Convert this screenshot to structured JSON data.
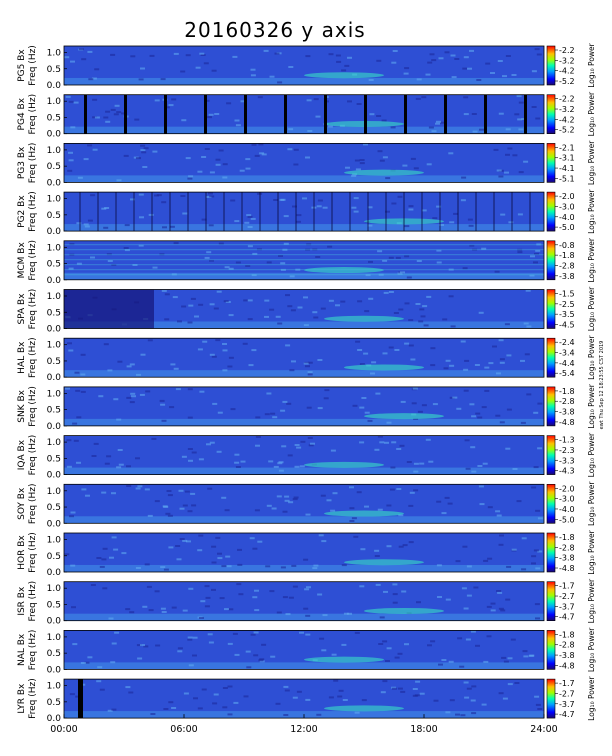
{
  "title": "20160326 y axis",
  "side_note": "ewt Thu Sep 12 18:23:55 CST 2019",
  "chart_data": {
    "type": "heatmap",
    "title": "20160326 y axis",
    "xlabel": "",
    "x_range": [
      0,
      24
    ],
    "x_ticks": [
      "00:00",
      "06:00",
      "12:00",
      "18:00",
      "24:00"
    ],
    "y_ticks": [
      "0.0",
      "0.5",
      "1.0"
    ],
    "ylim": [
      0,
      1.2
    ],
    "colorbar_label": "Log₁₀ Power",
    "panels": [
      {
        "station": "PG5",
        "ylabel_line1": "PG5 Bx",
        "ylabel_line2": "Freq (Hz)",
        "cbar_label": "Log₁₀ Power",
        "cbar_ticks": [
          "-2.2",
          "-3.2",
          "-4.2",
          "-5.2"
        ]
      },
      {
        "station": "PG4",
        "ylabel_line1": "PG4 Bx",
        "ylabel_line2": "Freq (Hz)",
        "cbar_label": "Log₁₀ Power",
        "cbar_ticks": [
          "-2.2",
          "-3.2",
          "-4.2",
          "-5.2"
        ]
      },
      {
        "station": "PG3",
        "ylabel_line1": "PG3 Bx",
        "ylabel_line2": "Freq (Hz)",
        "cbar_label": "Log₁₀ Power",
        "cbar_ticks": [
          "-2.1",
          "-3.1",
          "-4.1",
          "-5.1"
        ]
      },
      {
        "station": "PG2",
        "ylabel_line1": "PG2 Bx",
        "ylabel_line2": "Freq (Hz)",
        "cbar_label": "Log₁₀ Power",
        "cbar_ticks": [
          "-2.0",
          "-3.0",
          "-4.0",
          "-5.0"
        ]
      },
      {
        "station": "MCM",
        "ylabel_line1": "MCM Bx",
        "ylabel_line2": "Freq (Hz)",
        "cbar_label": "Log₁₀ Power",
        "cbar_ticks": [
          "-0.8",
          "-1.8",
          "-2.8",
          "-3.8"
        ]
      },
      {
        "station": "SPA",
        "ylabel_line1": "SPA Bx",
        "ylabel_line2": "Freq (Hz)",
        "cbar_label": "Log₁₀ Power",
        "cbar_ticks": [
          "-1.5",
          "-2.5",
          "-3.5",
          "-4.5"
        ]
      },
      {
        "station": "HAL",
        "ylabel_line1": "HAL Bx",
        "ylabel_line2": "Freq (Hz)",
        "cbar_label": "Log₁₀ Power",
        "cbar_ticks": [
          "-2.4",
          "-3.4",
          "-4.4",
          "-5.4"
        ]
      },
      {
        "station": "SNK",
        "ylabel_line1": "SNK Bx",
        "ylabel_line2": "Freq (Hz)",
        "cbar_label": "Log₁₀ Power",
        "cbar_ticks": [
          "-1.8",
          "-2.8",
          "-3.8",
          "-4.8"
        ]
      },
      {
        "station": "IQA",
        "ylabel_line1": "IQA Bx",
        "ylabel_line2": "Freq (Hz)",
        "cbar_label": "Log₁₀ Power",
        "cbar_ticks": [
          "-1.3",
          "-2.3",
          "-3.3",
          "-4.3"
        ]
      },
      {
        "station": "SOY",
        "ylabel_line1": "SOY Bx",
        "ylabel_line2": "Freq (Hz)",
        "cbar_label": "Log₁₀ Power",
        "cbar_ticks": [
          "-2.0",
          "-3.0",
          "-4.0",
          "-5.0"
        ]
      },
      {
        "station": "HOR",
        "ylabel_line1": "HOR Bx",
        "ylabel_line2": "Freq (Hz)",
        "cbar_label": "Log₁₀ Power",
        "cbar_ticks": [
          "-1.8",
          "-2.8",
          "-3.8",
          "-4.8"
        ]
      },
      {
        "station": "ISR",
        "ylabel_line1": "ISR Bx",
        "ylabel_line2": "Freq (Hz)",
        "cbar_label": "Log₁₀ Power",
        "cbar_ticks": [
          "-1.7",
          "-2.7",
          "-3.7",
          "-4.7"
        ]
      },
      {
        "station": "NAL",
        "ylabel_line1": "NAL Bx",
        "ylabel_line2": "Freq (Hz)",
        "cbar_label": "Log₁₀ Power",
        "cbar_ticks": [
          "-1.8",
          "-2.8",
          "-3.8",
          "-4.8"
        ]
      },
      {
        "station": "LYR",
        "ylabel_line1": "LYR Bx",
        "ylabel_line2": "Freq (Hz)",
        "cbar_label": "Log₁₀ Power",
        "cbar_ticks": [
          "-1.7",
          "-2.7",
          "-3.7",
          "-4.7"
        ]
      }
    ]
  }
}
